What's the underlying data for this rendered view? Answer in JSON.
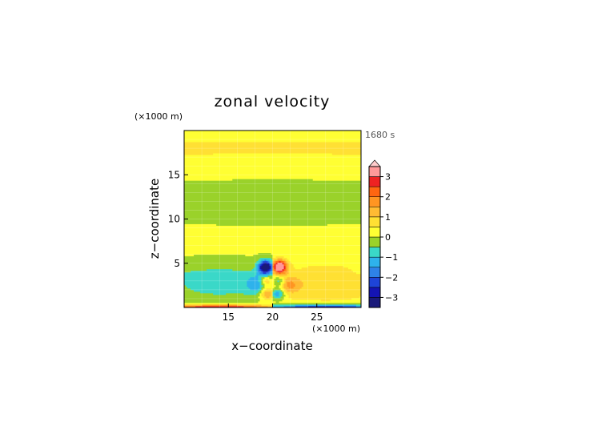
{
  "chart_data": {
    "type": "heatmap",
    "title": "zonal velocity",
    "xlabel": "x−coordinate",
    "ylabel": "z−coordinate",
    "x_unit": "(×1000 m)",
    "y_unit": "(×1000 m)",
    "time_label": "1680 s",
    "x_range": [
      10,
      30
    ],
    "y_range": [
      0,
      20
    ],
    "x_ticks": [
      15,
      20,
      25
    ],
    "y_ticks": [
      5,
      10,
      15
    ],
    "colorbar": {
      "tick_labels": [
        "3",
        "2",
        "1",
        "0",
        "−1",
        "−2",
        "−3"
      ],
      "tick_values": [
        3,
        2,
        1,
        0,
        -1,
        -2,
        -3
      ],
      "range": [
        -3.5,
        3.5
      ],
      "step": 0.5,
      "colors": [
        "#1a1a7a",
        "#1414b4",
        "#1e44d8",
        "#2e82e8",
        "#2eb2ec",
        "#3ad8c8",
        "#9ad22a",
        "#ffff33",
        "#ffe033",
        "#ffbb33",
        "#ff9522",
        "#ff6611",
        "#ee2222",
        "#ff9999"
      ]
    },
    "field_description": "Background near zero (green/yellow). Positive anomaly right of x=20 and negative anomaly left, concentrated below z=6, with strong |u|>3 pair near x≈19–21, z≈4.5 and surface maxima along z≈0."
  }
}
